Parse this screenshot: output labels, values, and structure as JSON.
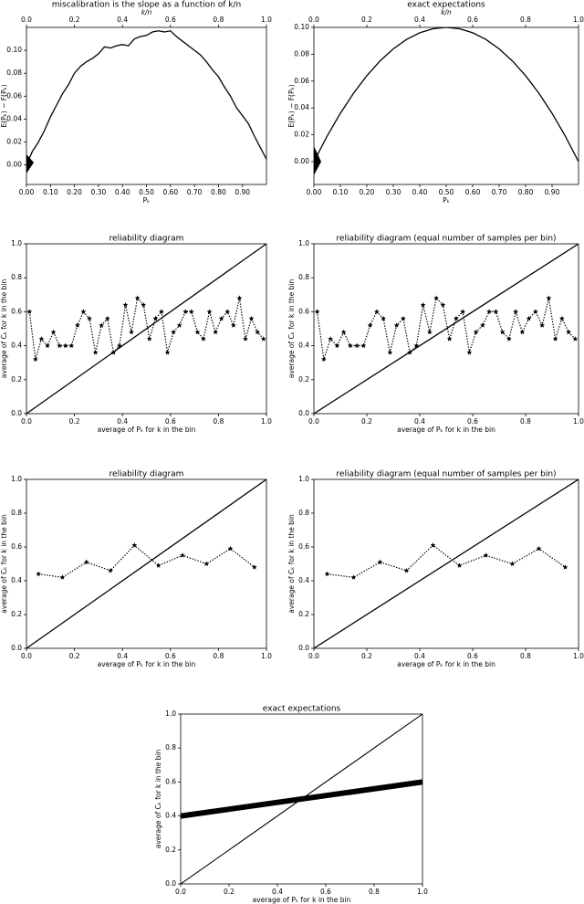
{
  "chart_data": [
    {
      "type": "line",
      "title": "miscalibration is the slope as a function of k/n",
      "xlabel": "Pₖ",
      "ylabel": "E(Pₖ) − F(Pₖ)",
      "x2label": "k/n",
      "xlim": [
        0,
        1
      ],
      "ylim": [
        -0.017,
        0.12
      ],
      "x2lim": [
        0,
        1
      ],
      "xticks": [
        {
          "value": 0,
          "label": "0.00"
        },
        {
          "value": 0.1,
          "label": "0.10"
        },
        {
          "value": 0.2,
          "label": "0.20"
        },
        {
          "value": 0.3,
          "label": "0.30"
        },
        {
          "value": 0.4,
          "label": "0.40"
        },
        {
          "value": 0.5,
          "label": "0.50"
        },
        {
          "value": 0.6,
          "label": "0.60"
        },
        {
          "value": 0.7,
          "label": "0.70"
        },
        {
          "value": 0.8,
          "label": "0.80"
        },
        {
          "value": 0.9,
          "label": "0.90"
        }
      ],
      "x2ticks": [
        {
          "value": 0,
          "label": "0.0"
        },
        0.2,
        0.4,
        0.6,
        0.8,
        {
          "value": 1,
          "label": "1.0"
        }
      ],
      "yticks": [
        {
          "value": 0,
          "label": "0.00"
        },
        {
          "value": 0.02,
          "label": "0.02"
        },
        {
          "value": 0.04,
          "label": "0.04"
        },
        {
          "value": 0.06,
          "label": "0.06"
        },
        {
          "value": 0.08,
          "label": "0.08"
        },
        {
          "value": 0.1,
          "label": "0.10"
        }
      ],
      "series": [
        {
          "color": "#000000",
          "linestyle": "solid",
          "linewidth": 1.3,
          "x": [
            0,
            0.025,
            0.05,
            0.075,
            0.1,
            0.125,
            0.15,
            0.175,
            0.2,
            0.225,
            0.25,
            0.275,
            0.3,
            0.325,
            0.35,
            0.375,
            0.4,
            0.425,
            0.45,
            0.475,
            0.5,
            0.525,
            0.55,
            0.575,
            0.6,
            0.625,
            0.65,
            0.675,
            0.7,
            0.725,
            0.75,
            0.775,
            0.8,
            0.825,
            0.85,
            0.875,
            0.9,
            0.925,
            0.95,
            0.975,
            1
          ],
          "values": [
            0.0,
            0.012,
            0.02,
            0.03,
            0.042,
            0.052,
            0.062,
            0.07,
            0.08,
            0.086,
            0.09,
            0.093,
            0.097,
            0.103,
            0.102,
            0.104,
            0.105,
            0.104,
            0.11,
            0.112,
            0.113,
            0.116,
            0.117,
            0.116,
            0.117,
            0.112,
            0.108,
            0.104,
            0.1,
            0.096,
            0.09,
            0.083,
            0.077,
            0.068,
            0.06,
            0.05,
            0.043,
            0.036,
            0.025,
            0.015,
            0.005
          ]
        }
      ]
    },
    {
      "type": "line",
      "title": "exact expectations",
      "xlabel": "Pₖ",
      "ylabel": "E(Pₖ) − F(Pₖ)",
      "x2label": "k/n",
      "xlim": [
        0,
        1
      ],
      "ylim": [
        -0.017,
        0.1
      ],
      "x2lim": [
        0,
        1
      ],
      "xticks": [
        {
          "value": 0,
          "label": "0.00"
        },
        {
          "value": 0.1,
          "label": "0.10"
        },
        {
          "value": 0.2,
          "label": "0.20"
        },
        {
          "value": 0.3,
          "label": "0.30"
        },
        {
          "value": 0.4,
          "label": "0.40"
        },
        {
          "value": 0.5,
          "label": "0.50"
        },
        {
          "value": 0.6,
          "label": "0.60"
        },
        {
          "value": 0.7,
          "label": "0.70"
        },
        {
          "value": 0.8,
          "label": "0.80"
        },
        {
          "value": 0.9,
          "label": "0.90"
        }
      ],
      "x2ticks": [
        {
          "value": 0,
          "label": "0.0"
        },
        0.2,
        0.4,
        0.6,
        0.8,
        {
          "value": 1,
          "label": "1.0"
        }
      ],
      "yticks": [
        {
          "value": 0,
          "label": "0.00"
        },
        {
          "value": 0.02,
          "label": "0.02"
        },
        {
          "value": 0.04,
          "label": "0.04"
        },
        {
          "value": 0.06,
          "label": "0.06"
        },
        {
          "value": 0.08,
          "label": "0.08"
        },
        {
          "value": 0.1,
          "label": "0.10"
        }
      ],
      "series": [
        {
          "color": "#000000",
          "linestyle": "solid",
          "linewidth": 1.3,
          "x": [
            0,
            0.05,
            0.1,
            0.15,
            0.2,
            0.25,
            0.3,
            0.35,
            0.4,
            0.45,
            0.5,
            0.55,
            0.6,
            0.65,
            0.7,
            0.75,
            0.8,
            0.85,
            0.9,
            0.95,
            1
          ],
          "values": [
            0,
            0.019,
            0.036,
            0.051,
            0.064,
            0.075,
            0.084,
            0.091,
            0.096,
            0.099,
            0.1,
            0.099,
            0.096,
            0.091,
            0.084,
            0.075,
            0.064,
            0.051,
            0.036,
            0.019,
            0
          ]
        }
      ]
    },
    {
      "type": "line",
      "title": "reliability diagram",
      "xlabel": "average of Pₖ for k in the bin",
      "ylabel": "average of Cₖ for k in the bin",
      "xlim": [
        0,
        1
      ],
      "ylim": [
        0,
        1
      ],
      "xticks": [
        {
          "value": 0,
          "label": "0.0"
        },
        0.2,
        0.4,
        0.6,
        0.8,
        {
          "value": 1,
          "label": "1.0"
        }
      ],
      "yticks": [
        {
          "value": 0,
          "label": "0.0"
        },
        0.2,
        0.4,
        0.6,
        0.8,
        {
          "value": 1,
          "label": "1.0"
        }
      ],
      "series": [
        {
          "color": "#000000",
          "linestyle": "dotted",
          "marker": "star",
          "linewidth": 1.2,
          "x": [
            0.0125,
            0.0375,
            0.0625,
            0.0875,
            0.1125,
            0.1375,
            0.1625,
            0.1875,
            0.2125,
            0.2375,
            0.2625,
            0.2875,
            0.3125,
            0.3375,
            0.3625,
            0.3875,
            0.4125,
            0.4375,
            0.4625,
            0.4875,
            0.5125,
            0.5375,
            0.5625,
            0.5875,
            0.6125,
            0.6375,
            0.6625,
            0.6875,
            0.7125,
            0.7375,
            0.7625,
            0.7875,
            0.8125,
            0.8375,
            0.8625,
            0.8875,
            0.9125,
            0.9375,
            0.9625,
            0.9875
          ],
          "values": [
            0.6,
            0.32,
            0.44,
            0.4,
            0.48,
            0.4,
            0.4,
            0.4,
            0.52,
            0.6,
            0.56,
            0.36,
            0.52,
            0.56,
            0.36,
            0.4,
            0.64,
            0.48,
            0.68,
            0.64,
            0.44,
            0.56,
            0.6,
            0.36,
            0.48,
            0.52,
            0.6,
            0.6,
            0.48,
            0.44,
            0.6,
            0.48,
            0.56,
            0.6,
            0.52,
            0.68,
            0.44,
            0.56,
            0.48,
            0.44
          ]
        },
        {
          "color": "#000000",
          "linestyle": "solid",
          "linewidth": 1.3,
          "x": [
            0,
            1
          ],
          "values": [
            0,
            1
          ]
        }
      ]
    },
    {
      "type": "line",
      "title": "reliability diagram (equal number of samples per bin)",
      "xlabel": "average of Pₖ for k in the bin",
      "ylabel": "average of Cₖ for k in the bin",
      "xlim": [
        0,
        1
      ],
      "ylim": [
        0,
        1
      ],
      "xticks": [
        {
          "value": 0,
          "label": "0.0"
        },
        0.2,
        0.4,
        0.6,
        0.8,
        {
          "value": 1,
          "label": "1.0"
        }
      ],
      "yticks": [
        {
          "value": 0,
          "label": "0.0"
        },
        0.2,
        0.4,
        0.6,
        0.8,
        {
          "value": 1,
          "label": "1.0"
        }
      ],
      "series": [
        {
          "color": "#000000",
          "linestyle": "dotted",
          "marker": "star",
          "linewidth": 1.2,
          "x": [
            0.0125,
            0.0375,
            0.0625,
            0.0875,
            0.1125,
            0.1375,
            0.1625,
            0.1875,
            0.2125,
            0.2375,
            0.2625,
            0.2875,
            0.3125,
            0.3375,
            0.3625,
            0.3875,
            0.4125,
            0.4375,
            0.4625,
            0.4875,
            0.5125,
            0.5375,
            0.5625,
            0.5875,
            0.6125,
            0.6375,
            0.6625,
            0.6875,
            0.7125,
            0.7375,
            0.7625,
            0.7875,
            0.8125,
            0.8375,
            0.8625,
            0.8875,
            0.9125,
            0.9375,
            0.9625,
            0.9875
          ],
          "values": [
            0.6,
            0.32,
            0.44,
            0.4,
            0.48,
            0.4,
            0.4,
            0.4,
            0.52,
            0.6,
            0.56,
            0.36,
            0.52,
            0.56,
            0.36,
            0.4,
            0.64,
            0.48,
            0.68,
            0.64,
            0.44,
            0.56,
            0.6,
            0.36,
            0.48,
            0.52,
            0.6,
            0.6,
            0.48,
            0.44,
            0.6,
            0.48,
            0.56,
            0.6,
            0.52,
            0.68,
            0.44,
            0.56,
            0.48,
            0.44
          ]
        },
        {
          "color": "#000000",
          "linestyle": "solid",
          "linewidth": 1.3,
          "x": [
            0,
            1
          ],
          "values": [
            0,
            1
          ]
        }
      ]
    },
    {
      "type": "line",
      "title": "reliability diagram",
      "xlabel": "average of Pₖ for k in the bin",
      "ylabel": "average of Cₖ for k in the bin",
      "xlim": [
        0,
        1
      ],
      "ylim": [
        0,
        1
      ],
      "xticks": [
        {
          "value": 0,
          "label": "0.0"
        },
        0.2,
        0.4,
        0.6,
        0.8,
        {
          "value": 1,
          "label": "1.0"
        }
      ],
      "yticks": [
        {
          "value": 0,
          "label": "0.0"
        },
        0.2,
        0.4,
        0.6,
        0.8,
        {
          "value": 1,
          "label": "1.0"
        }
      ],
      "series": [
        {
          "color": "#000000",
          "linestyle": "dotted",
          "marker": "star",
          "linewidth": 1.2,
          "x": [
            0.05,
            0.15,
            0.25,
            0.35,
            0.45,
            0.55,
            0.65,
            0.75,
            0.85,
            0.95
          ],
          "values": [
            0.44,
            0.42,
            0.51,
            0.46,
            0.61,
            0.49,
            0.55,
            0.5,
            0.59,
            0.48
          ]
        },
        {
          "color": "#000000",
          "linestyle": "solid",
          "linewidth": 1.3,
          "x": [
            0,
            1
          ],
          "values": [
            0,
            1
          ]
        }
      ]
    },
    {
      "type": "line",
      "title": "reliability diagram (equal number of samples per bin)",
      "xlabel": "average of Pₖ for k in the bin",
      "ylabel": "average of Cₖ for k in the bin",
      "xlim": [
        0,
        1
      ],
      "ylim": [
        0,
        1
      ],
      "xticks": [
        {
          "value": 0,
          "label": "0.0"
        },
        0.2,
        0.4,
        0.6,
        0.8,
        {
          "value": 1,
          "label": "1.0"
        }
      ],
      "yticks": [
        {
          "value": 0,
          "label": "0.0"
        },
        0.2,
        0.4,
        0.6,
        0.8,
        {
          "value": 1,
          "label": "1.0"
        }
      ],
      "series": [
        {
          "color": "#000000",
          "linestyle": "dotted",
          "marker": "star",
          "linewidth": 1.2,
          "x": [
            0.05,
            0.15,
            0.25,
            0.35,
            0.45,
            0.55,
            0.65,
            0.75,
            0.85,
            0.95
          ],
          "values": [
            0.44,
            0.42,
            0.51,
            0.46,
            0.61,
            0.49,
            0.55,
            0.5,
            0.59,
            0.48
          ]
        },
        {
          "color": "#000000",
          "linestyle": "solid",
          "linewidth": 1.3,
          "x": [
            0,
            1
          ],
          "values": [
            0,
            1
          ]
        }
      ]
    },
    {
      "type": "line",
      "title": "exact expectations",
      "xlabel": "average of Pₖ for k in the bin",
      "ylabel": "average of Cₖ for k in the bin",
      "xlim": [
        0,
        1
      ],
      "ylim": [
        0,
        1
      ],
      "xticks": [
        {
          "value": 0,
          "label": "0.0"
        },
        0.2,
        0.4,
        0.6,
        0.8,
        {
          "value": 1,
          "label": "1.0"
        }
      ],
      "yticks": [
        {
          "value": 0,
          "label": "0.0"
        },
        0.2,
        0.4,
        0.6,
        0.8,
        {
          "value": 1,
          "label": "1.0"
        }
      ],
      "series": [
        {
          "color": "#000000",
          "linestyle": "solid",
          "linewidth": 6,
          "x": [
            0,
            1
          ],
          "values": [
            0.4,
            0.6
          ]
        },
        {
          "color": "#000000",
          "linestyle": "solid",
          "linewidth": 1.1,
          "x": [
            0,
            1
          ],
          "values": [
            0,
            1
          ]
        }
      ]
    }
  ]
}
